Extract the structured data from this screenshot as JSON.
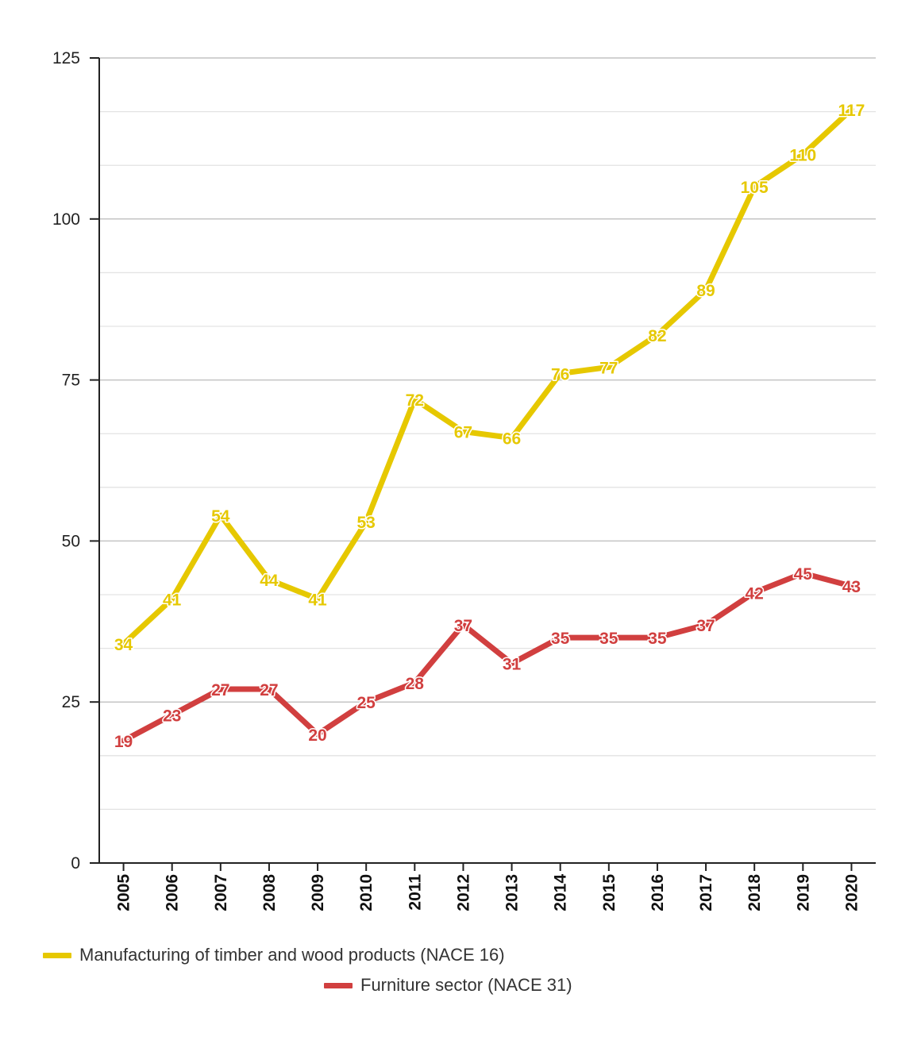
{
  "chart_data": {
    "type": "line",
    "title": "",
    "xlabel": "",
    "ylabel": "",
    "x": [
      "2005",
      "2006",
      "2007",
      "2008",
      "2009",
      "2010",
      "2011",
      "2012",
      "2013",
      "2014",
      "2015",
      "2016",
      "2017",
      "2018",
      "2019",
      "2020"
    ],
    "ylim": [
      0,
      125
    ],
    "y_ticks": [
      0,
      25,
      50,
      75,
      100,
      125
    ],
    "minor_grid_step": 8.333,
    "grid": true,
    "legend_position": "bottom",
    "series": [
      {
        "name": "Manufacturing of timber and wood products (NACE 16)",
        "color": "#E6C800",
        "values": [
          34,
          41,
          54,
          44,
          41,
          53,
          72,
          67,
          66,
          76,
          77,
          82,
          89,
          105,
          110,
          117
        ]
      },
      {
        "name": "Furniture sector (NACE 31)",
        "color": "#D13F3F",
        "values": [
          19,
          23,
          27,
          27,
          20,
          25,
          28,
          37,
          31,
          35,
          35,
          35,
          37,
          42,
          45,
          43
        ]
      }
    ]
  }
}
